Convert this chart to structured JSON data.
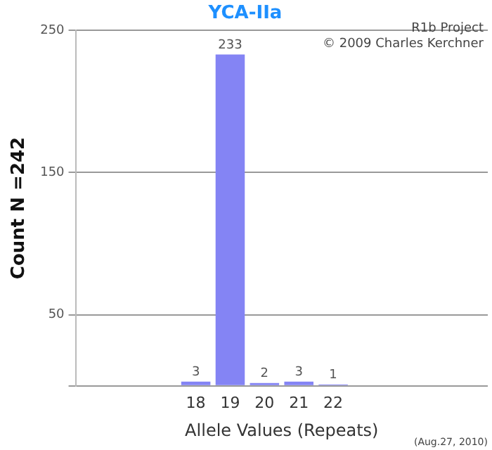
{
  "chart_data": {
    "type": "bar",
    "title": "YCA-IIa",
    "xlabel": "Allele Values (Repeats)",
    "ylabel": "Count N =242",
    "categories": [
      null,
      null,
      null,
      "18",
      "19",
      "20",
      "21",
      "22",
      null,
      null,
      null,
      null
    ],
    "values": [
      null,
      null,
      null,
      3,
      233,
      2,
      3,
      1,
      null,
      null,
      null,
      null
    ],
    "color": "#8484f4",
    "ylim": [
      0,
      250
    ],
    "yticks": [
      {
        "value": 0,
        "label": null
      },
      50,
      150,
      250
    ],
    "grid": "y",
    "legend": false,
    "data_labels": true,
    "annotations": [
      "R1b Project",
      "© 2009 Charles Kerchner",
      "(Aug.27, 2010)"
    ]
  }
}
